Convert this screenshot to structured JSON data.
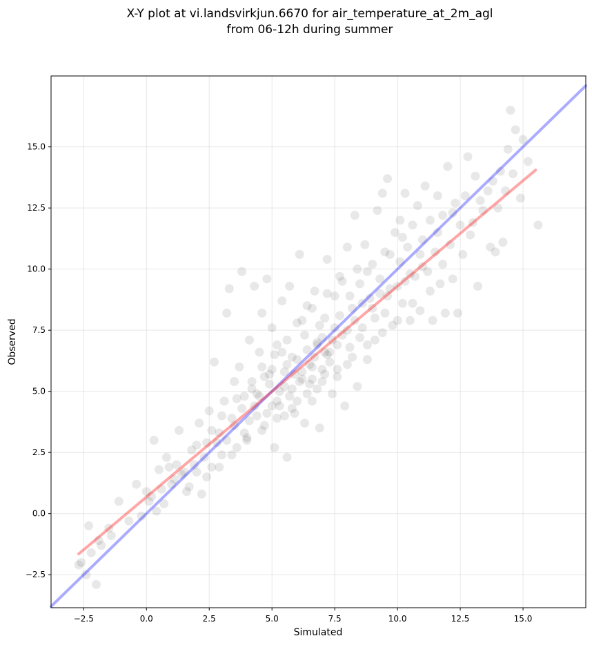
{
  "chart_data": {
    "type": "scatter",
    "title": [
      "X-Y plot at vi.landsvirkjun.6670 for air_temperature_at_2m_agl",
      "from 06-12h during summer"
    ],
    "xlabel": "Simulated",
    "ylabel": "Observed",
    "xlim": [
      -3.8,
      17.5
    ],
    "ylim": [
      -3.85,
      17.9
    ],
    "xticks": [
      -2.5,
      0.0,
      2.5,
      5.0,
      7.5,
      10.0,
      12.5,
      15.0
    ],
    "yticks": [
      -2.5,
      0.0,
      2.5,
      5.0,
      7.5,
      10.0,
      12.5,
      15.0
    ],
    "xtick_labels": [
      "−2.5",
      "0.0",
      "2.5",
      "5.0",
      "7.5",
      "10.0",
      "12.5",
      "15.0"
    ],
    "ytick_labels": [
      "−2.5",
      "0.0",
      "2.5",
      "5.0",
      "7.5",
      "10.0",
      "12.5",
      "15.0"
    ],
    "grid": true,
    "point_color": "#000000",
    "point_opacity": 0.09,
    "identity_line": {
      "color": "#0000ff",
      "opacity": 0.33,
      "x": [
        -3.8,
        17.5
      ],
      "y": [
        -3.8,
        17.5
      ]
    },
    "regression_line": {
      "color": "#ff0000",
      "opacity": 0.35,
      "x": [
        -2.7,
        15.5
      ],
      "y": [
        -1.65,
        14.05
      ]
    },
    "points": [
      [
        -2.6,
        -2.0
      ],
      [
        -2.4,
        -2.5
      ],
      [
        -2.2,
        -1.6
      ],
      [
        -2.0,
        -2.9
      ],
      [
        -2.3,
        -0.5
      ],
      [
        -1.8,
        -1.3
      ],
      [
        -1.5,
        -0.6
      ],
      [
        -1.1,
        0.5
      ],
      [
        -0.7,
        -0.3
      ],
      [
        -2.7,
        -2.1
      ],
      [
        -1.9,
        -1.1
      ],
      [
        -1.4,
        -0.9
      ],
      [
        -0.4,
        1.2
      ],
      [
        0.0,
        0.9
      ],
      [
        0.2,
        0.7
      ],
      [
        0.4,
        0.1
      ],
      [
        0.3,
        3.0
      ],
      [
        0.5,
        1.8
      ],
      [
        0.7,
        0.4
      ],
      [
        0.8,
        2.3
      ],
      [
        1.0,
        1.2
      ],
      [
        1.2,
        2.0
      ],
      [
        1.3,
        3.4
      ],
      [
        1.4,
        1.6
      ],
      [
        1.6,
        0.9
      ],
      [
        1.8,
        2.6
      ],
      [
        2.0,
        1.7
      ],
      [
        2.1,
        3.7
      ],
      [
        2.2,
        0.8
      ],
      [
        2.4,
        2.9
      ],
      [
        2.5,
        4.2
      ],
      [
        2.6,
        1.9
      ],
      [
        2.7,
        6.2
      ],
      [
        2.9,
        3.3
      ],
      [
        3.0,
        2.4
      ],
      [
        3.1,
        4.6
      ],
      [
        3.2,
        8.2
      ],
      [
        3.3,
        9.2
      ],
      [
        3.4,
        3.9
      ],
      [
        3.5,
        5.4
      ],
      [
        3.6,
        2.7
      ],
      [
        3.7,
        6.0
      ],
      [
        3.8,
        9.9
      ],
      [
        3.9,
        4.8
      ],
      [
        4.0,
        3.1
      ],
      [
        4.1,
        7.1
      ],
      [
        4.2,
        5.1
      ],
      [
        4.3,
        9.3
      ],
      [
        4.4,
        4.0
      ],
      [
        4.5,
        6.6
      ],
      [
        4.6,
        8.2
      ],
      [
        4.7,
        3.6
      ],
      [
        4.8,
        9.6
      ],
      [
        4.9,
        5.7
      ],
      [
        5.0,
        7.6
      ],
      [
        5.1,
        2.7
      ],
      [
        5.2,
        6.9
      ],
      [
        5.3,
        4.4
      ],
      [
        5.4,
        8.7
      ],
      [
        5.5,
        5.2
      ],
      [
        5.6,
        2.3
      ],
      [
        5.7,
        9.3
      ],
      [
        5.8,
        6.4
      ],
      [
        5.9,
        4.1
      ],
      [
        6.0,
        7.8
      ],
      [
        6.1,
        10.6
      ],
      [
        6.2,
        5.5
      ],
      [
        6.3,
        3.7
      ],
      [
        6.4,
        8.5
      ],
      [
        6.5,
        6.1
      ],
      [
        6.6,
        4.6
      ],
      [
        6.7,
        9.1
      ],
      [
        6.8,
        7.0
      ],
      [
        6.9,
        3.5
      ],
      [
        7.0,
        5.9
      ],
      [
        7.1,
        8.0
      ],
      [
        7.2,
        10.4
      ],
      [
        7.3,
        6.6
      ],
      [
        7.4,
        4.9
      ],
      [
        7.5,
        8.9
      ],
      [
        7.6,
        5.6
      ],
      [
        7.7,
        9.7
      ],
      [
        7.8,
        7.3
      ],
      [
        7.9,
        4.4
      ],
      [
        8.0,
        10.9
      ],
      [
        8.1,
        6.8
      ],
      [
        8.2,
        8.4
      ],
      [
        8.3,
        12.2
      ],
      [
        8.4,
        5.2
      ],
      [
        8.5,
        9.4
      ],
      [
        8.6,
        7.6
      ],
      [
        8.7,
        11.0
      ],
      [
        8.8,
        6.3
      ],
      [
        8.9,
        8.8
      ],
      [
        9.0,
        10.2
      ],
      [
        9.1,
        7.1
      ],
      [
        9.2,
        12.4
      ],
      [
        9.3,
        9.0
      ],
      [
        9.4,
        13.1
      ],
      [
        9.5,
        8.2
      ],
      [
        9.6,
        13.7
      ],
      [
        9.7,
        10.6
      ],
      [
        9.8,
        7.7
      ],
      [
        9.9,
        11.5
      ],
      [
        10.0,
        9.3
      ],
      [
        10.1,
        12.0
      ],
      [
        10.2,
        8.6
      ],
      [
        10.3,
        13.1
      ],
      [
        10.4,
        10.9
      ],
      [
        10.5,
        7.9
      ],
      [
        10.6,
        11.8
      ],
      [
        10.7,
        9.7
      ],
      [
        10.8,
        12.6
      ],
      [
        10.9,
        8.3
      ],
      [
        11.0,
        11.2
      ],
      [
        11.1,
        13.4
      ],
      [
        11.2,
        9.9
      ],
      [
        11.3,
        12.0
      ],
      [
        11.4,
        7.9
      ],
      [
        11.5,
        10.7
      ],
      [
        11.6,
        13.0
      ],
      [
        11.7,
        9.4
      ],
      [
        11.8,
        12.2
      ],
      [
        11.9,
        8.2
      ],
      [
        12.0,
        14.2
      ],
      [
        12.1,
        11.0
      ],
      [
        12.2,
        9.6
      ],
      [
        12.3,
        12.7
      ],
      [
        12.4,
        8.2
      ],
      [
        12.6,
        10.6
      ],
      [
        12.8,
        14.6
      ],
      [
        13.0,
        11.9
      ],
      [
        13.1,
        13.8
      ],
      [
        13.2,
        9.3
      ],
      [
        13.4,
        12.4
      ],
      [
        13.6,
        13.2
      ],
      [
        13.7,
        10.9
      ],
      [
        14.0,
        12.5
      ],
      [
        14.2,
        11.1
      ],
      [
        14.4,
        14.9
      ],
      [
        14.5,
        16.5
      ],
      [
        14.6,
        13.9
      ],
      [
        14.7,
        15.7
      ],
      [
        14.9,
        12.9
      ],
      [
        15.0,
        15.3
      ],
      [
        15.2,
        14.4
      ],
      [
        15.6,
        11.8
      ],
      [
        14.3,
        13.2
      ],
      [
        13.9,
        10.7
      ],
      [
        12.9,
        11.4
      ],
      [
        4.5,
        4.8
      ],
      [
        4.9,
        5.3
      ],
      [
        5.2,
        4.6
      ],
      [
        5.5,
        5.8
      ],
      [
        5.8,
        5.1
      ],
      [
        6.0,
        6.3
      ],
      [
        6.2,
        5.8
      ],
      [
        6.4,
        6.7
      ],
      [
        6.6,
        6.0
      ],
      [
        6.8,
        6.9
      ],
      [
        7.0,
        7.2
      ],
      [
        7.2,
        6.5
      ],
      [
        5.3,
        5.0
      ],
      [
        5.6,
        6.1
      ],
      [
        6.1,
        5.4
      ],
      [
        6.7,
        6.4
      ],
      [
        7.1,
        5.7
      ],
      [
        5.0,
        4.4
      ],
      [
        4.7,
        5.6
      ],
      [
        6.3,
        7.3
      ],
      [
        6.9,
        7.7
      ],
      [
        7.4,
        7.1
      ],
      [
        7.7,
        8.1
      ],
      [
        5.4,
        6.6
      ],
      [
        5.9,
        5.7
      ],
      [
        6.5,
        5.3
      ],
      [
        7.3,
        6.2
      ],
      [
        4.8,
        4.1
      ],
      [
        5.7,
        4.8
      ],
      [
        6.8,
        5.1
      ],
      [
        7.6,
        6.9
      ],
      [
        8.0,
        7.5
      ],
      [
        8.3,
        7.9
      ],
      [
        8.6,
        8.6
      ],
      [
        9.0,
        8.4
      ],
      [
        9.3,
        9.6
      ],
      [
        9.7,
        9.2
      ],
      [
        10.1,
        10.3
      ],
      [
        10.5,
        9.8
      ],
      [
        10.9,
        10.6
      ],
      [
        8.1,
        8.9
      ],
      [
        8.8,
        9.9
      ],
      [
        9.5,
        10.7
      ],
      [
        10.2,
        11.3
      ],
      [
        3.5,
        3.6
      ],
      [
        3.8,
        4.3
      ],
      [
        4.1,
        3.8
      ],
      [
        4.4,
        4.9
      ],
      [
        3.2,
        3.0
      ],
      [
        2.8,
        2.9
      ],
      [
        2.3,
        2.3
      ],
      [
        1.9,
        2.0
      ],
      [
        1.5,
        1.7
      ],
      [
        1.1,
        1.4
      ],
      [
        0.6,
        1.0
      ],
      [
        2.6,
        3.4
      ],
      [
        3.0,
        4.0
      ],
      [
        3.6,
        4.7
      ],
      [
        4.2,
        5.4
      ],
      [
        4.6,
        6.0
      ],
      [
        5.1,
        6.5
      ],
      [
        5.6,
        7.1
      ],
      [
        6.2,
        7.9
      ],
      [
        6.6,
        8.4
      ],
      [
        7.2,
        9.0
      ],
      [
        7.8,
        9.5
      ],
      [
        8.4,
        10.0
      ],
      [
        2.9,
        1.9
      ],
      [
        3.4,
        2.4
      ],
      [
        4.0,
        3.0
      ],
      [
        4.6,
        3.4
      ],
      [
        5.2,
        3.9
      ],
      [
        5.8,
        4.3
      ],
      [
        6.4,
        4.9
      ],
      [
        7.0,
        5.4
      ],
      [
        7.6,
        5.9
      ],
      [
        8.2,
        6.4
      ],
      [
        8.8,
        6.9
      ],
      [
        9.4,
        7.4
      ],
      [
        10.0,
        7.9
      ],
      [
        10.6,
        8.6
      ],
      [
        11.3,
        9.1
      ],
      [
        0.1,
        0.5
      ],
      [
        -0.2,
        -0.1
      ],
      [
        0.9,
        1.9
      ],
      [
        1.7,
        1.1
      ],
      [
        2.0,
        2.8
      ],
      [
        2.4,
        1.5
      ],
      [
        3.9,
        3.3
      ],
      [
        4.3,
        4.4
      ],
      [
        5.0,
        5.9
      ],
      [
        5.5,
        4.0
      ],
      [
        6.0,
        4.6
      ],
      [
        6.6,
        5.5
      ],
      [
        7.1,
        6.6
      ],
      [
        7.5,
        7.6
      ],
      [
        8.0,
        6.1
      ],
      [
        8.5,
        7.2
      ],
      [
        9.1,
        8.0
      ],
      [
        9.6,
        8.9
      ],
      [
        10.3,
        9.5
      ],
      [
        11.0,
        10.1
      ],
      [
        11.6,
        11.5
      ],
      [
        12.2,
        12.3
      ],
      [
        12.7,
        13.0
      ],
      [
        13.3,
        12.8
      ],
      [
        13.8,
        13.6
      ],
      [
        14.1,
        14.0
      ],
      [
        12.5,
        11.8
      ],
      [
        11.8,
        10.2
      ]
    ]
  }
}
